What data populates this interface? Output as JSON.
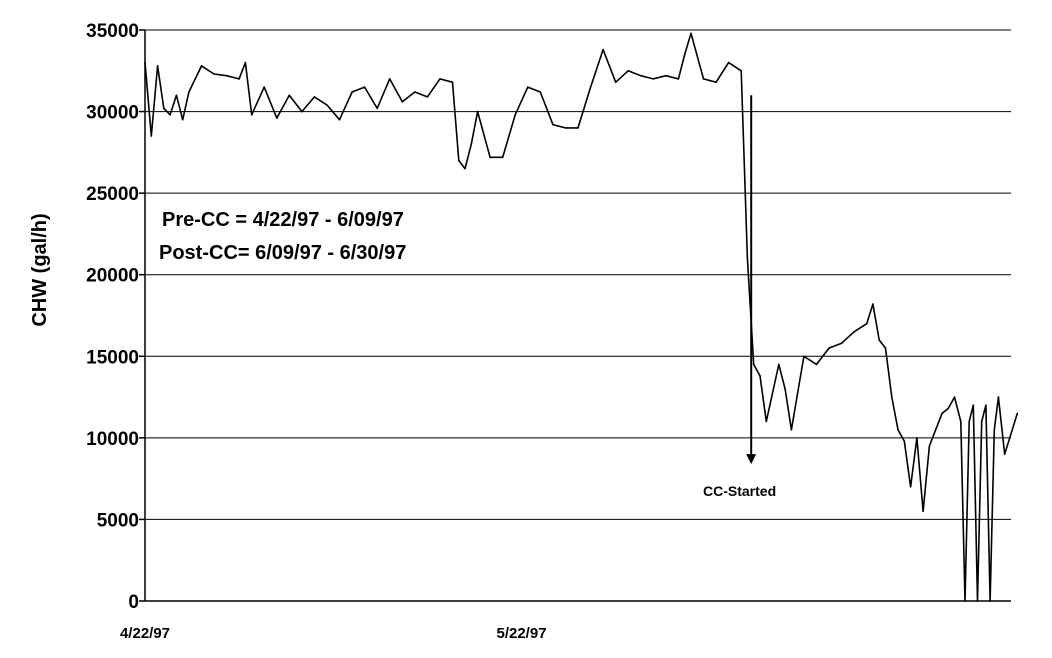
{
  "chart_data": {
    "type": "line",
    "title": "",
    "ylabel": "CHW (gal/h)",
    "xlabel": "",
    "ylim": [
      0,
      35000
    ],
    "y_ticks": [
      0,
      5000,
      10000,
      15000,
      20000,
      25000,
      30000,
      35000
    ],
    "x_tick_labels": [
      "4/22/97",
      "5/22/97"
    ],
    "xlim": [
      "1997-04-22",
      "1997-06-30"
    ],
    "grid": "horizontal",
    "line_color": "#000000",
    "annotations": {
      "line1": "Pre-CC = 4/22/97 - 6/09/97",
      "line2": "Post-CC= 6/09/97 - 6/30/97",
      "marker": "CC-Started",
      "marker_date": "1997-06-09"
    },
    "series": [
      {
        "points": [
          [
            "1997-04-22",
            33000
          ],
          [
            "1997-04-22",
            28500
          ],
          [
            "1997-04-23",
            32800
          ],
          [
            "1997-04-23",
            30200
          ],
          [
            "1997-04-24",
            29800
          ],
          [
            "1997-04-24",
            31000
          ],
          [
            "1997-04-25",
            29500
          ],
          [
            "1997-04-25",
            31200
          ],
          [
            "1997-04-26",
            32800
          ],
          [
            "1997-04-27",
            32300
          ],
          [
            "1997-04-28",
            32200
          ],
          [
            "1997-04-29",
            32000
          ],
          [
            "1997-04-30",
            33000
          ],
          [
            "1997-04-30",
            29800
          ],
          [
            "1997-05-01",
            31500
          ],
          [
            "1997-05-02",
            29600
          ],
          [
            "1997-05-03",
            31000
          ],
          [
            "1997-05-04",
            30000
          ],
          [
            "1997-05-05",
            30900
          ],
          [
            "1997-05-06",
            30400
          ],
          [
            "1997-05-07",
            29500
          ],
          [
            "1997-05-08",
            31200
          ],
          [
            "1997-05-09",
            31500
          ],
          [
            "1997-05-10",
            30200
          ],
          [
            "1997-05-11",
            32000
          ],
          [
            "1997-05-12",
            30600
          ],
          [
            "1997-05-13",
            31200
          ],
          [
            "1997-05-14",
            30900
          ],
          [
            "1997-05-15",
            32000
          ],
          [
            "1997-05-16",
            31800
          ],
          [
            "1997-05-17",
            27000
          ],
          [
            "1997-05-17",
            26500
          ],
          [
            "1997-05-18",
            28000
          ],
          [
            "1997-05-18",
            30000
          ],
          [
            "1997-05-19",
            27200
          ],
          [
            "1997-05-20",
            27200
          ],
          [
            "1997-05-21",
            29800
          ],
          [
            "1997-05-22",
            31500
          ],
          [
            "1997-05-23",
            31200
          ],
          [
            "1997-05-24",
            29200
          ],
          [
            "1997-05-25",
            29000
          ],
          [
            "1997-05-26",
            29000
          ],
          [
            "1997-05-27",
            31500
          ],
          [
            "1997-05-28",
            33800
          ],
          [
            "1997-05-29",
            31800
          ],
          [
            "1997-05-30",
            32500
          ],
          [
            "1997-05-31",
            32200
          ],
          [
            "1997-06-01",
            32000
          ],
          [
            "1997-06-02",
            32200
          ],
          [
            "1997-06-03",
            32000
          ],
          [
            "1997-06-04",
            33500
          ],
          [
            "1997-06-04",
            34800
          ],
          [
            "1997-06-05",
            32000
          ],
          [
            "1997-06-06",
            31800
          ],
          [
            "1997-06-07",
            33000
          ],
          [
            "1997-06-08",
            32500
          ],
          [
            "1997-06-09",
            21000
          ],
          [
            "1997-06-09",
            14500
          ],
          [
            "1997-06-10",
            13800
          ],
          [
            "1997-06-10",
            11000
          ],
          [
            "1997-06-11",
            14500
          ],
          [
            "1997-06-12",
            13000
          ],
          [
            "1997-06-12",
            10500
          ],
          [
            "1997-06-13",
            15000
          ],
          [
            "1997-06-14",
            14500
          ],
          [
            "1997-06-15",
            15500
          ],
          [
            "1997-06-16",
            15800
          ],
          [
            "1997-06-17",
            16500
          ],
          [
            "1997-06-18",
            17000
          ],
          [
            "1997-06-19",
            18200
          ],
          [
            "1997-06-19",
            16000
          ],
          [
            "1997-06-20",
            15500
          ],
          [
            "1997-06-20",
            12500
          ],
          [
            "1997-06-21",
            10500
          ],
          [
            "1997-06-21",
            9800
          ],
          [
            "1997-06-22",
            7000
          ],
          [
            "1997-06-22",
            10000
          ],
          [
            "1997-06-23",
            5500
          ],
          [
            "1997-06-23",
            9500
          ],
          [
            "1997-06-24",
            11500
          ],
          [
            "1997-06-25",
            11800
          ],
          [
            "1997-06-25",
            12500
          ],
          [
            "1997-06-26",
            11000
          ],
          [
            "1997-06-26",
            0
          ],
          [
            "1997-06-26",
            11000
          ],
          [
            "1997-06-27",
            12000
          ],
          [
            "1997-06-27",
            0
          ],
          [
            "1997-06-27",
            11000
          ],
          [
            "1997-06-28",
            12000
          ],
          [
            "1997-06-28",
            0
          ],
          [
            "1997-06-28",
            10500
          ],
          [
            "1997-06-29",
            12500
          ],
          [
            "1997-06-29",
            9000
          ],
          [
            "1997-06-30",
            11500
          ]
        ]
      }
    ]
  }
}
